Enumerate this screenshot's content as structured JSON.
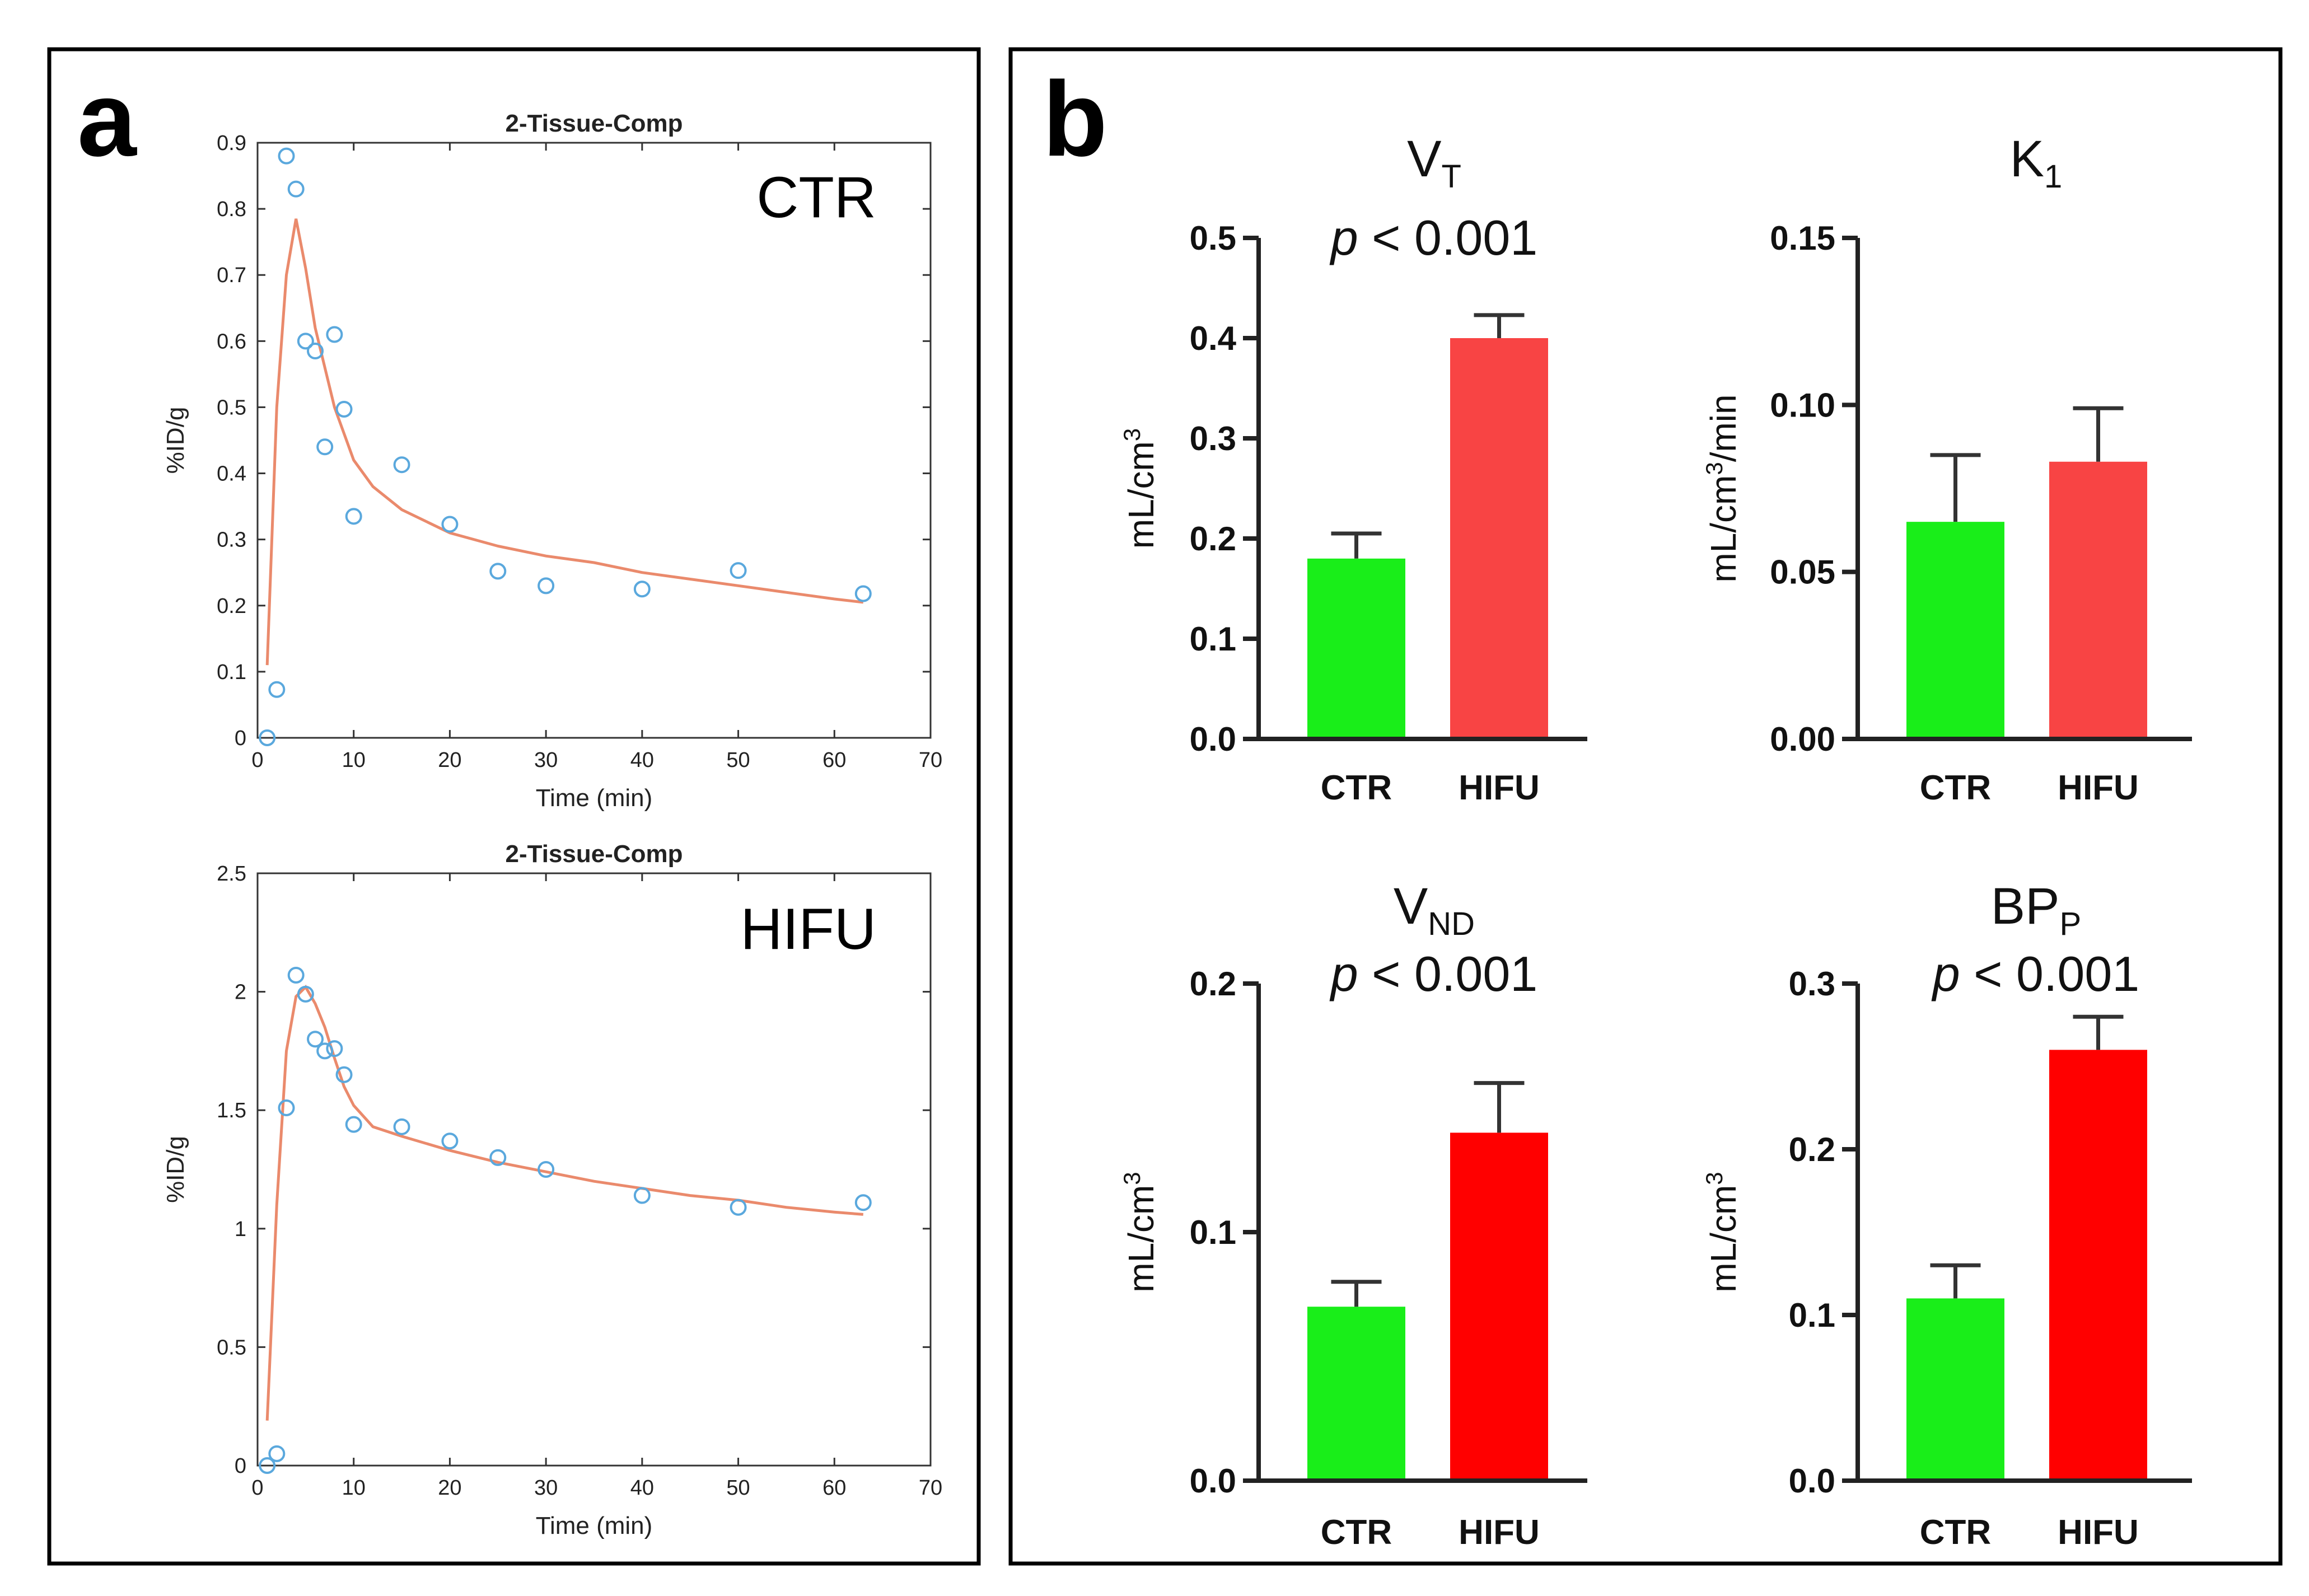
{
  "figure": {
    "panel_a_letter": "a",
    "panel_b_letter": "b"
  },
  "colors": {
    "fit": "#ea8a6c",
    "points": "#5aa8dd",
    "ctr_green": "#19ee19",
    "hifu_red_light": "#f84444",
    "hifu_red": "#ff0000"
  },
  "chart_data": [
    {
      "id": "ctr_fit",
      "type": "scatter",
      "title": "2-Tissue-Comp",
      "group_label": "CTR",
      "xlabel": "Time (min)",
      "ylabel": "%ID/g",
      "xlim": [
        0,
        70
      ],
      "ylim": [
        0,
        0.9
      ],
      "xticks": [
        0,
        10,
        20,
        30,
        40,
        50,
        60,
        70
      ],
      "yticks": [
        0,
        0.1,
        0.2,
        0.3,
        0.4,
        0.5,
        0.6,
        0.7,
        0.8,
        0.9
      ],
      "ytick_labels": [
        "0",
        "0.1",
        "0.2",
        "0.3",
        "0.4",
        "0.5",
        "0.6",
        "0.7",
        "0.8",
        "0.9"
      ],
      "measured": {
        "x": [
          1,
          2,
          3,
          4,
          5,
          6,
          7,
          8,
          9,
          10,
          15,
          20,
          25,
          30,
          40,
          50,
          63
        ],
        "y": [
          0.0,
          0.073,
          0.88,
          0.83,
          0.6,
          0.585,
          0.44,
          0.61,
          0.497,
          0.335,
          0.413,
          0.323,
          0.252,
          0.23,
          0.225,
          0.253,
          0.218
        ]
      },
      "fit": {
        "x": [
          1,
          2,
          3,
          4,
          5,
          6,
          8,
          10,
          12,
          15,
          20,
          25,
          30,
          35,
          40,
          45,
          50,
          55,
          60,
          63
        ],
        "y": [
          0.11,
          0.5,
          0.7,
          0.785,
          0.71,
          0.62,
          0.5,
          0.42,
          0.38,
          0.345,
          0.31,
          0.29,
          0.275,
          0.265,
          0.25,
          0.24,
          0.23,
          0.22,
          0.21,
          0.205
        ]
      }
    },
    {
      "id": "hifu_fit",
      "type": "scatter",
      "title": "2-Tissue-Comp",
      "group_label": "HIFU",
      "xlabel": "Time (min)",
      "ylabel": "%ID/g",
      "xlim": [
        0,
        70
      ],
      "ylim": [
        0,
        2.5
      ],
      "xticks": [
        0,
        10,
        20,
        30,
        40,
        50,
        60,
        70
      ],
      "yticks": [
        0,
        0.5,
        1,
        1.5,
        2,
        2.5
      ],
      "ytick_labels": [
        "0",
        "0.5",
        "1",
        "1.5",
        "2",
        "2.5"
      ],
      "measured": {
        "x": [
          1,
          2,
          3,
          4,
          5,
          6,
          7,
          8,
          9,
          10,
          15,
          20,
          25,
          30,
          40,
          50,
          63
        ],
        "y": [
          0.0,
          0.05,
          1.51,
          2.07,
          1.99,
          1.8,
          1.75,
          1.76,
          1.65,
          1.44,
          1.43,
          1.37,
          1.3,
          1.25,
          1.14,
          1.09,
          1.11
        ]
      },
      "fit": {
        "x": [
          1,
          2,
          3,
          4,
          5,
          6,
          7,
          8,
          9,
          10,
          12,
          15,
          20,
          25,
          30,
          35,
          40,
          45,
          50,
          55,
          60,
          63
        ],
        "y": [
          0.19,
          1.1,
          1.75,
          1.98,
          2.02,
          1.95,
          1.85,
          1.72,
          1.6,
          1.52,
          1.43,
          1.39,
          1.33,
          1.28,
          1.24,
          1.2,
          1.17,
          1.14,
          1.12,
          1.09,
          1.07,
          1.06
        ]
      }
    },
    {
      "id": "vt",
      "type": "bar",
      "title_main": "V",
      "title_sub": "T",
      "pvalue_p": "p",
      "pvalue_rest": " < 0.001",
      "ylabel_base": "mL/cm",
      "ylabel_sup": "3",
      "ylabel_suffix": "",
      "categories": [
        "CTR",
        "HIFU"
      ],
      "values": [
        0.18,
        0.4
      ],
      "errors": [
        0.025,
        0.023
      ],
      "bar_colors": [
        "#19ee19",
        "#f84444"
      ],
      "ylim": [
        0,
        0.5
      ],
      "yticks": [
        0,
        0.1,
        0.2,
        0.3,
        0.4,
        0.5
      ],
      "ytick_labels": [
        "0.0",
        "0.1",
        "0.2",
        "0.3",
        "0.4",
        "0.5"
      ]
    },
    {
      "id": "k1",
      "type": "bar",
      "title_main": "K",
      "title_sub": "1",
      "pvalue_p": "",
      "pvalue_rest": "",
      "ylabel_base": "mL/cm",
      "ylabel_sup": "3",
      "ylabel_suffix": "/min",
      "categories": [
        "CTR",
        "HIFU"
      ],
      "values": [
        0.065,
        0.083
      ],
      "errors": [
        0.02,
        0.016
      ],
      "bar_colors": [
        "#19ee19",
        "#f84444"
      ],
      "ylim": [
        0,
        0.15
      ],
      "yticks": [
        0,
        0.05,
        0.1,
        0.15
      ],
      "ytick_labels": [
        "0.00",
        "0.05",
        "0.10",
        "0.15"
      ]
    },
    {
      "id": "vnd",
      "type": "bar",
      "title_main": "V",
      "title_sub": "ND",
      "pvalue_p": "p",
      "pvalue_rest": " < 0.001",
      "ylabel_base": "mL/cm",
      "ylabel_sup": "3",
      "ylabel_suffix": "",
      "categories": [
        "CTR",
        "HIFU"
      ],
      "values": [
        0.07,
        0.14
      ],
      "errors": [
        0.01,
        0.02
      ],
      "bar_colors": [
        "#19ee19",
        "#ff0000"
      ],
      "ylim": [
        0,
        0.2
      ],
      "yticks": [
        0,
        0.1,
        0.2
      ],
      "ytick_labels": [
        "0.0",
        "0.1",
        "0.2"
      ]
    },
    {
      "id": "bpp",
      "type": "bar",
      "title_main": "BP",
      "title_sub": "P",
      "pvalue_p": "p",
      "pvalue_rest": " < 0.001",
      "ylabel_base": "mL/cm",
      "ylabel_sup": "3",
      "ylabel_suffix": "",
      "categories": [
        "CTR",
        "HIFU"
      ],
      "values": [
        0.11,
        0.26
      ],
      "errors": [
        0.02,
        0.02
      ],
      "bar_colors": [
        "#19ee19",
        "#ff0000"
      ],
      "ylim": [
        0,
        0.3
      ],
      "yticks": [
        0,
        0.1,
        0.2,
        0.3
      ],
      "ytick_labels": [
        "0.0",
        "0.1",
        "0.2",
        "0.3"
      ]
    }
  ]
}
